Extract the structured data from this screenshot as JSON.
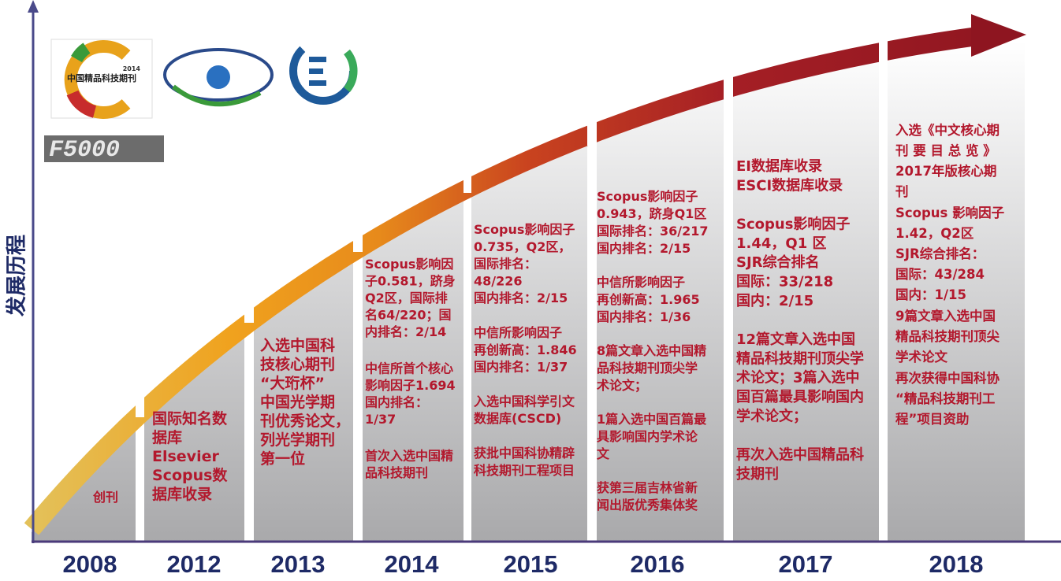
{
  "axis_label": "发展历程",
  "logos": {
    "cjcp_name": "中国精品科技期刊",
    "cjcp_year": "2014",
    "f5000": "F5000"
  },
  "columns": [
    {
      "year": "2008",
      "paragraphs": [
        [
          "创刊"
        ]
      ]
    },
    {
      "year": "2012",
      "paragraphs": [
        [
          "国际知名数",
          "据库",
          "Elsevier",
          "Scopus数",
          "据库收录"
        ]
      ]
    },
    {
      "year": "2013",
      "paragraphs": [
        [
          "入选中国科",
          "技核心期刊",
          "“大珩杯”",
          "中国光学期",
          "刊优秀论文，",
          "列光学期刊",
          "第一位"
        ]
      ]
    },
    {
      "year": "2014",
      "paragraphs": [
        [
          "Scopus影响因",
          "子0.581，跻身",
          "Q2区，国际排",
          "名64/220；国",
          "内排名：2/14"
        ],
        [
          "中信所首个核心",
          "影响因子1.694",
          "国内排名：",
          "1/37"
        ],
        [
          "首次入选中国精",
          "品科技期刊"
        ]
      ]
    },
    {
      "year": "2015",
      "paragraphs": [
        [
          "Scopus影响因子",
          "0.735，Q2区，",
          "国际排名：",
          "48/226",
          "国内排名：2/15"
        ],
        [
          "中信所影响因子",
          "再创新高：1.846",
          "国内排名：1/37"
        ],
        [
          "入选中国科学引文",
          "数据库(CSCD)"
        ],
        [
          "获批中国科协精辟",
          "科技期刊工程项目"
        ]
      ]
    },
    {
      "year": "2016",
      "paragraphs": [
        [
          "Scopus影响因子",
          "0.943，跻身Q1区",
          "国际排名：36/217",
          "国内排名：2/15"
        ],
        [
          "中信所影响因子",
          "再创新高：1.965",
          "国内排名：1/36"
        ],
        [
          "8篇文章入选中国精",
          "品科技期刊顶尖学",
          "术论文；"
        ],
        [
          "1篇入选中国百篇最",
          "具影响国内学术论",
          "文"
        ],
        [
          "获第三届吉林省新",
          "闻出版优秀集体奖"
        ]
      ]
    },
    {
      "year": "2017",
      "paragraphs": [
        [
          "EI数据库收录",
          "ESCI数据库收录"
        ],
        [
          "Scopus影响因子",
          "1.44，Q1 区",
          "SJR综合排名",
          "国际：33/218",
          "国内：2/15"
        ],
        [
          "12篇文章入选中国",
          "精品科技期刊顶尖学",
          "术论文；3篇入选中",
          "国百篇最具影响国内",
          "学术论文；"
        ],
        [
          "再次入选中国精品科",
          "技期刊"
        ]
      ]
    },
    {
      "year": "2018",
      "paragraphs": [
        [
          "入选《中文核心期",
          "刊 要 目 总 览 》",
          "2017年版核心期",
          "刊"
        ],
        [
          "Scopus 影响因子",
          "1.42，Q2区",
          "SJR综合排名：",
          "国际：43/284",
          "国内：1/15"
        ],
        [
          "9篇文章入选中国",
          "精品科技期刊顶尖",
          "学术论文"
        ],
        [
          "再次获得中国科协",
          "“精品科技期刊工",
          "程”项目资助"
        ]
      ]
    }
  ]
}
